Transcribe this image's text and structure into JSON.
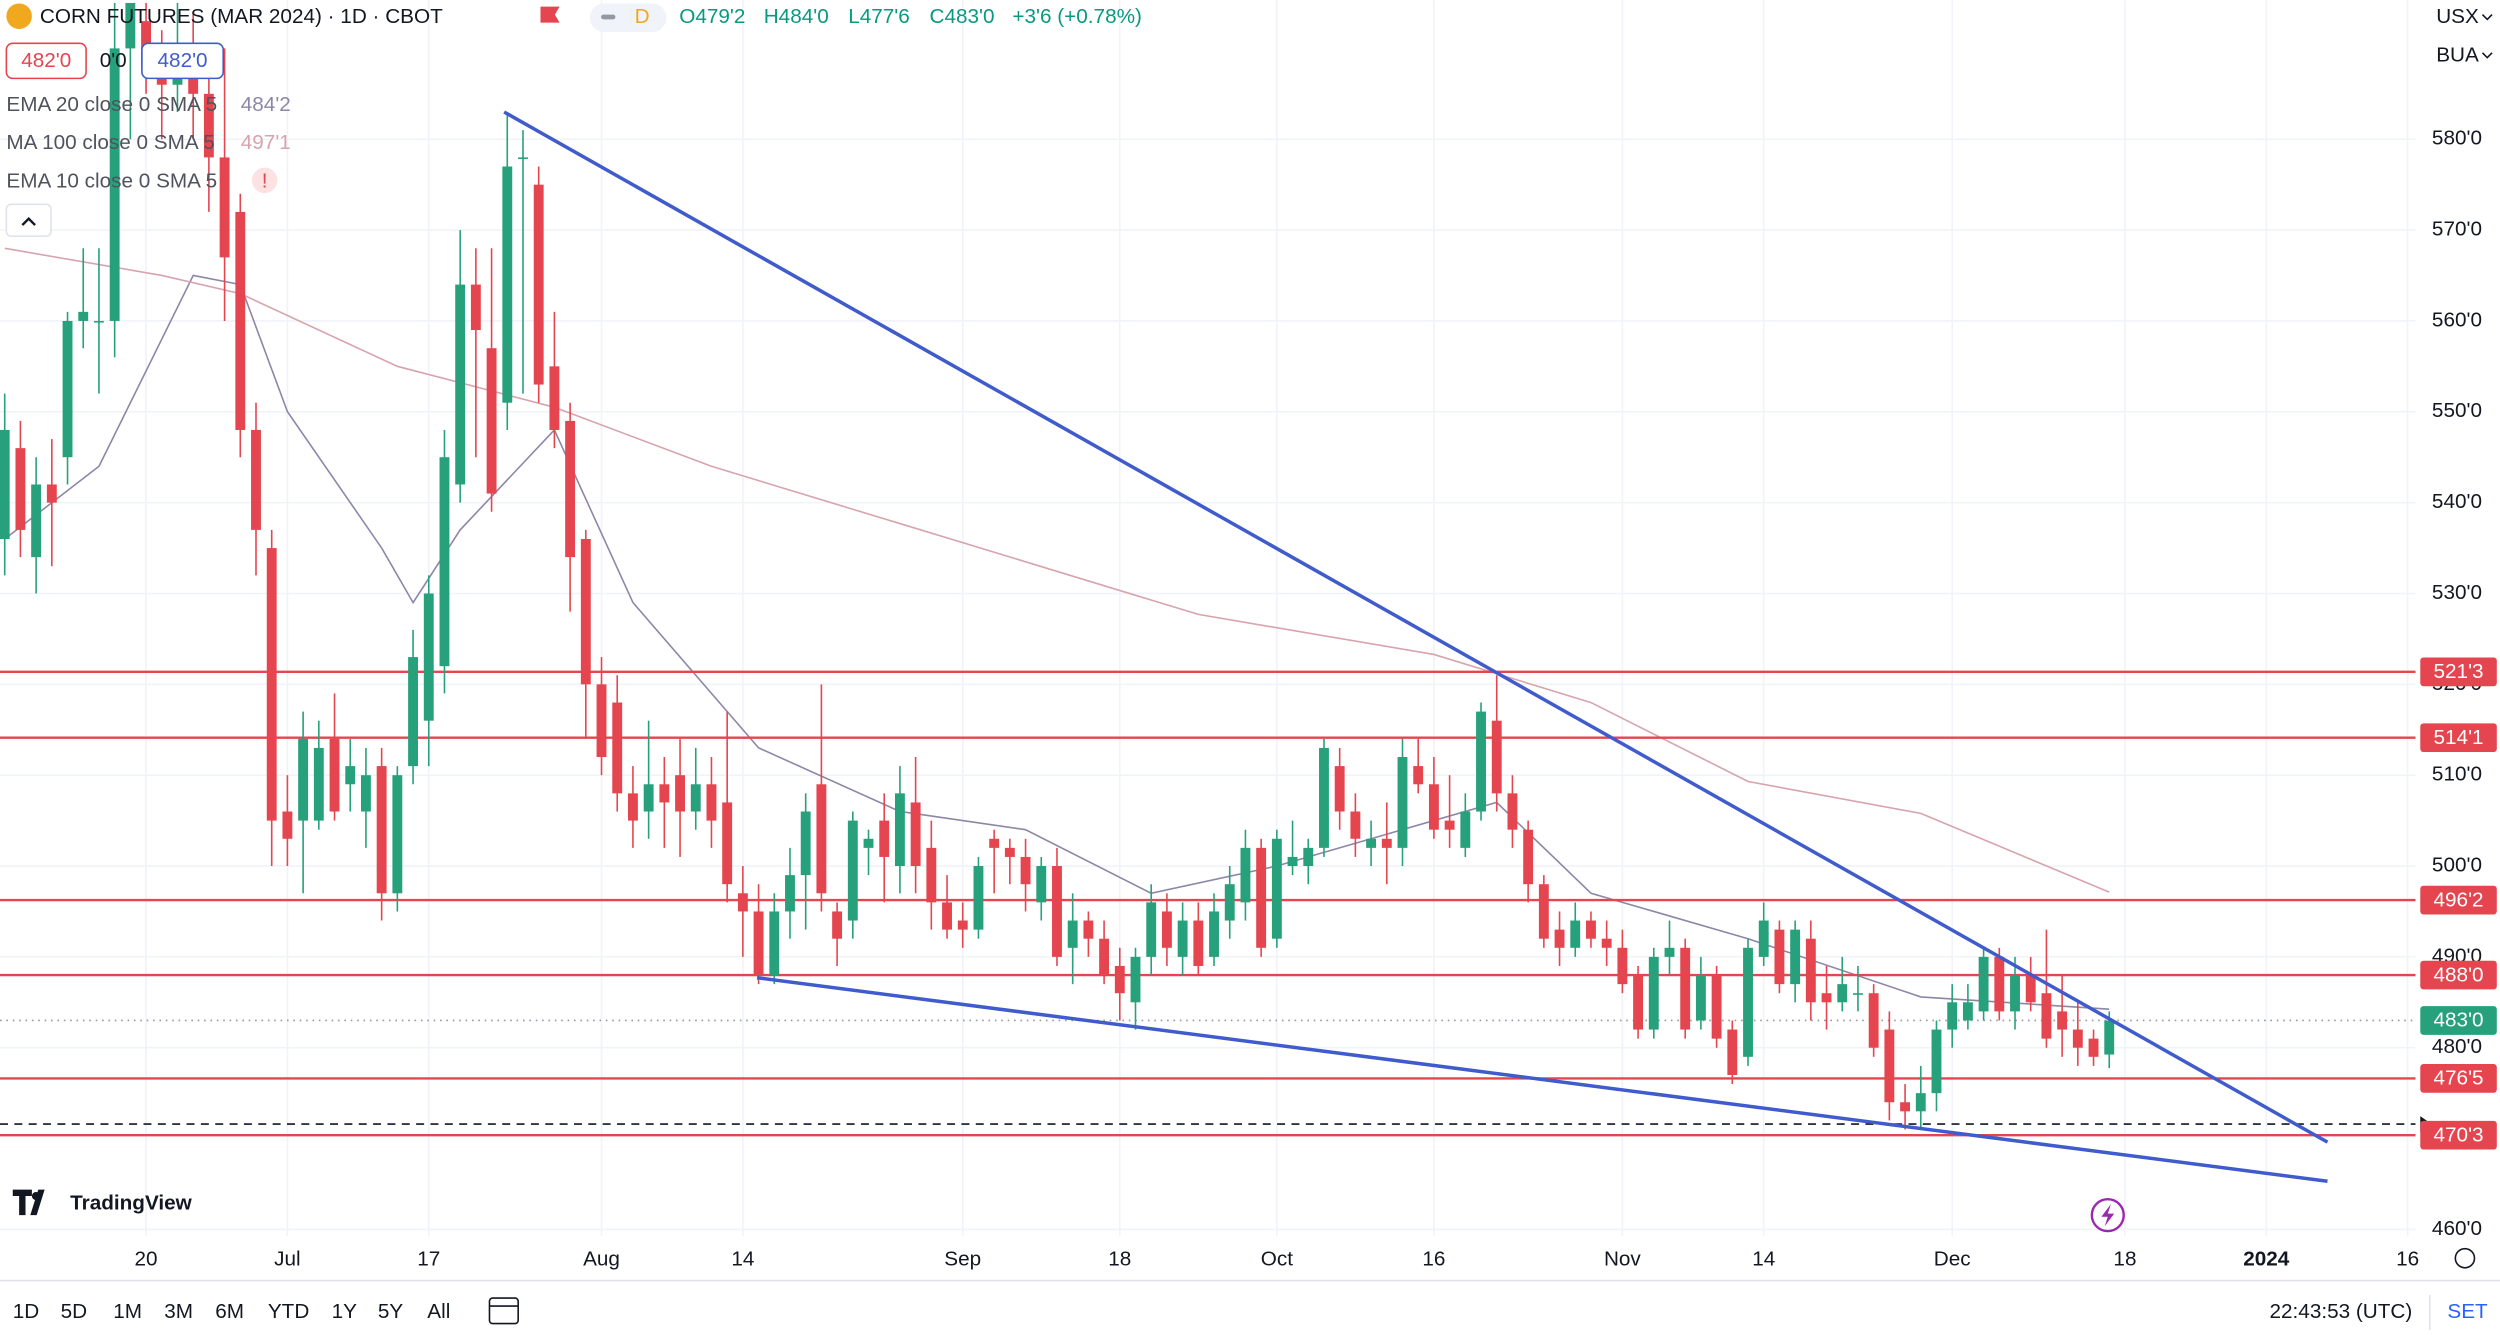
{
  "chart_data": {
    "type": "candlestick",
    "title": "CORN FUTURES (MAR 2024) · 1D · CBOT",
    "interval_badge": "D",
    "ohlc_legend": [
      "O479'2",
      "H484'0",
      "L477'6",
      "C483'0"
    ],
    "change": "+3'6 (+0.78%)",
    "price_boxes": [
      "482'0",
      "0'0",
      "482'0"
    ],
    "up_color": "#26a17b",
    "down_color": "#e5454f",
    "xlim": [
      -0.3,
      153.5
    ],
    "ylim": [
      454.9,
      595.3
    ],
    "xticks": [
      {
        "value": 9,
        "label": "20"
      },
      {
        "value": 18,
        "label": "Jul"
      },
      {
        "value": 27,
        "label": "17"
      },
      {
        "value": 38,
        "label": "Aug"
      },
      {
        "value": 47,
        "label": "14"
      },
      {
        "value": 61,
        "label": "Sep"
      },
      {
        "value": 71,
        "label": "18"
      },
      {
        "value": 81,
        "label": "Oct"
      },
      {
        "value": 91,
        "label": "16"
      },
      {
        "value": 103,
        "label": "Nov"
      },
      {
        "value": 112,
        "label": "14"
      },
      {
        "value": 124,
        "label": "Dec"
      },
      {
        "value": 135,
        "label": "18"
      },
      {
        "value": 144,
        "label": "2024"
      },
      {
        "value": 153,
        "label": "16"
      }
    ],
    "yticks": [
      {
        "value": 460,
        "label": "460'0"
      },
      {
        "value": 480,
        "label": "480'0"
      },
      {
        "value": 490,
        "label": "490'0"
      },
      {
        "value": 500,
        "label": "500'0"
      },
      {
        "value": 510,
        "label": "510'0"
      },
      {
        "value": 520,
        "label": "520'0"
      },
      {
        "value": 530,
        "label": "530'0"
      },
      {
        "value": 540,
        "label": "540'0"
      },
      {
        "value": 550,
        "label": "550'0"
      },
      {
        "value": 560,
        "label": "560'0"
      },
      {
        "value": 570,
        "label": "570'0"
      },
      {
        "value": 580,
        "label": "580'0"
      }
    ],
    "grid": true,
    "ohlc": [
      [
        536,
        552,
        532,
        548
      ],
      [
        546,
        549,
        534,
        537
      ],
      [
        534,
        545,
        530,
        542
      ],
      [
        542,
        547,
        533,
        540
      ],
      [
        545,
        561,
        542,
        560
      ],
      [
        560,
        568,
        557,
        561
      ],
      [
        560,
        568,
        552,
        560
      ],
      [
        560,
        595,
        556,
        590
      ],
      [
        590,
        595,
        580,
        595
      ],
      [
        593,
        595,
        585,
        588
      ],
      [
        588,
        592,
        580,
        586
      ],
      [
        586,
        595,
        583,
        590
      ],
      [
        590,
        594,
        580,
        585
      ],
      [
        585,
        590,
        572,
        578
      ],
      [
        578,
        590,
        560,
        567
      ],
      [
        572,
        574,
        545,
        548
      ],
      [
        548,
        551,
        532,
        537
      ],
      [
        535,
        537,
        500,
        505
      ],
      [
        506,
        510,
        500,
        503
      ],
      [
        505,
        517,
        497,
        514
      ],
      [
        505,
        516,
        504,
        513
      ],
      [
        514,
        519,
        505,
        506
      ],
      [
        509,
        514,
        506,
        511
      ],
      [
        506,
        513,
        502,
        510
      ],
      [
        511,
        513,
        494,
        497
      ],
      [
        497,
        511,
        495,
        510
      ],
      [
        511,
        526,
        509,
        523
      ],
      [
        516,
        532,
        511,
        530
      ],
      [
        522,
        548,
        519,
        545
      ],
      [
        542,
        570,
        540,
        564
      ],
      [
        564,
        568,
        545,
        559
      ],
      [
        557,
        568,
        539,
        541
      ],
      [
        551,
        583,
        548,
        577
      ],
      [
        578,
        581,
        552,
        578
      ],
      [
        575,
        577,
        551,
        553
      ],
      [
        555,
        561,
        546,
        548
      ],
      [
        549,
        551,
        528,
        534
      ],
      [
        536,
        537,
        514,
        520
      ],
      [
        520,
        523,
        510,
        512
      ],
      [
        518,
        521,
        506,
        508
      ],
      [
        508,
        511,
        502,
        505
      ],
      [
        506,
        516,
        503,
        509
      ],
      [
        509,
        512,
        502,
        507
      ],
      [
        510,
        514,
        501,
        506
      ],
      [
        506,
        513,
        504,
        509
      ],
      [
        509,
        512,
        502,
        505
      ],
      [
        507,
        517,
        496,
        498
      ],
      [
        497,
        500,
        490,
        495
      ],
      [
        495,
        498,
        487,
        488
      ],
      [
        488,
        497,
        487,
        495
      ],
      [
        495,
        502,
        492,
        499
      ],
      [
        499,
        508,
        493,
        506
      ],
      [
        509,
        520,
        495,
        497
      ],
      [
        495,
        496,
        489,
        492
      ],
      [
        494,
        506,
        492,
        505
      ],
      [
        502,
        504,
        499,
        503
      ],
      [
        505,
        508,
        496,
        501
      ],
      [
        500,
        511,
        497,
        508
      ],
      [
        507,
        512,
        497,
        500
      ],
      [
        502,
        505,
        493,
        496
      ],
      [
        496,
        499,
        492,
        493
      ],
      [
        494,
        496,
        491,
        493
      ],
      [
        493,
        501,
        492,
        500
      ],
      [
        503,
        504,
        497,
        502
      ],
      [
        502,
        503,
        498,
        501
      ],
      [
        501,
        503,
        495,
        498
      ],
      [
        496,
        501,
        494,
        500
      ],
      [
        500,
        502,
        489,
        490
      ],
      [
        491,
        497,
        487,
        494
      ],
      [
        494,
        495,
        490,
        492
      ],
      [
        492,
        494,
        487,
        488
      ],
      [
        489,
        491,
        483,
        486
      ],
      [
        485,
        491,
        482,
        490
      ],
      [
        490,
        498,
        488,
        496
      ],
      [
        495,
        497,
        489,
        491
      ],
      [
        490,
        496,
        488,
        494
      ],
      [
        494,
        496,
        488,
        489
      ],
      [
        490,
        497,
        489,
        495
      ],
      [
        494,
        500,
        492,
        498
      ],
      [
        496,
        504,
        494,
        502
      ],
      [
        502,
        503,
        490,
        491
      ],
      [
        492,
        504,
        491,
        503
      ],
      [
        500,
        505,
        499,
        501
      ],
      [
        500,
        503,
        498,
        502
      ],
      [
        502,
        514,
        501,
        513
      ],
      [
        511,
        513,
        504,
        506
      ],
      [
        506,
        508,
        501,
        503
      ],
      [
        502,
        505,
        500,
        503
      ],
      [
        503,
        507,
        498,
        502
      ],
      [
        502,
        514,
        500,
        512
      ],
      [
        511,
        514,
        508,
        509
      ],
      [
        509,
        512,
        503,
        504
      ],
      [
        505,
        510,
        502,
        504
      ],
      [
        502,
        508,
        501,
        506
      ],
      [
        506,
        518,
        505,
        517
      ],
      [
        516,
        521,
        506,
        508
      ],
      [
        508,
        510,
        502,
        504
      ],
      [
        504,
        505,
        496,
        498
      ],
      [
        498,
        499,
        491,
        492
      ],
      [
        493,
        495,
        489,
        491
      ],
      [
        491,
        496,
        490,
        494
      ],
      [
        494,
        495,
        491,
        492
      ],
      [
        492,
        494,
        489,
        491
      ],
      [
        491,
        493,
        486,
        487
      ],
      [
        488,
        489,
        481,
        482
      ],
      [
        482,
        491,
        481,
        490
      ],
      [
        490,
        494,
        488,
        491
      ],
      [
        491,
        492,
        481,
        482
      ],
      [
        483,
        490,
        482,
        488
      ],
      [
        488,
        489,
        480,
        481
      ],
      [
        482,
        483,
        476,
        477
      ],
      [
        479,
        492,
        478,
        491
      ],
      [
        490,
        496,
        489,
        494
      ],
      [
        493,
        494,
        486,
        487
      ],
      [
        487,
        494,
        485,
        493
      ],
      [
        492,
        494,
        483,
        485
      ],
      [
        486,
        489,
        482,
        485
      ],
      [
        485,
        490,
        484,
        487
      ],
      [
        486,
        489,
        484,
        486
      ],
      [
        486,
        487,
        479,
        480
      ],
      [
        482,
        484,
        472,
        474
      ],
      [
        474,
        476,
        471,
        473
      ],
      [
        473,
        478,
        471,
        475
      ],
      [
        475,
        483,
        473,
        482
      ],
      [
        482,
        487,
        480,
        485
      ],
      [
        483,
        487,
        482,
        485
      ],
      [
        484,
        491,
        483,
        490
      ],
      [
        490,
        491,
        483,
        484
      ],
      [
        484,
        490,
        482,
        488
      ],
      [
        488,
        490,
        484,
        485
      ],
      [
        486,
        493,
        480,
        481
      ],
      [
        484,
        488,
        479,
        482
      ],
      [
        482,
        485,
        478,
        480
      ],
      [
        481,
        482,
        478,
        479
      ],
      [
        479.25,
        484,
        477.75,
        483
      ]
    ],
    "indicators": [
      {
        "label": "EMA 20 close 0 SMA 5",
        "value_label": "484'2",
        "color": "#8e86a8",
        "x": [
          0,
          6,
          12,
          15,
          18,
          24,
          26,
          29,
          35,
          40,
          48,
          57,
          65,
          73,
          81,
          91,
          95,
          101,
          111,
          122,
          134
        ],
        "values": [
          536,
          544,
          565,
          564,
          550,
          535,
          529,
          537,
          548,
          529,
          513,
          506,
          504,
          497,
          500,
          505,
          507,
          497,
          492,
          485.6,
          484.25
        ]
      },
      {
        "label": "MA 100 close 0 SMA 5",
        "value_label": "497'1",
        "color": "#d7a3ad",
        "x": [
          0,
          10,
          15,
          25,
          35,
          45,
          61,
          76,
          91,
          101,
          111,
          122,
          134
        ],
        "values": [
          568,
          565,
          563,
          555,
          550.5,
          544,
          535.6,
          527.7,
          523.3,
          518,
          509.3,
          505.8,
          497.125
        ]
      },
      {
        "label": "EMA 10 close 0 SMA 5",
        "status": "!"
      }
    ],
    "levels": [
      {
        "value": 521.375,
        "label": "521'3"
      },
      {
        "value": 514.125,
        "label": "514'1"
      },
      {
        "value": 496.25,
        "label": "496'2"
      },
      {
        "value": 488,
        "label": "488'0"
      },
      {
        "value": 476.625,
        "label": "476'5"
      },
      {
        "value": 470.375,
        "label": "470'3"
      }
    ],
    "level_color": "#e5454f",
    "current_price": {
      "value": 483,
      "label": "483'0"
    },
    "dashed_level": 471.6,
    "trendlines": [
      {
        "color": "#3f5bcc",
        "x": [
          31.8,
          147.9
        ],
        "values": [
          583,
          469.6
        ]
      },
      {
        "color": "#3f5bcc",
        "x": [
          47.9,
          147.9
        ],
        "values": [
          487.7,
          465.3
        ]
      }
    ]
  },
  "toolbar": {
    "symbol_unit": "USX",
    "currency": "BUA",
    "ranges": [
      "1D",
      "5D",
      "1M",
      "3M",
      "6M",
      "YTD",
      "1Y",
      "5Y",
      "All"
    ],
    "time": "22:43:53 (UTC)",
    "settings": "SET"
  },
  "logo": "TradingView"
}
